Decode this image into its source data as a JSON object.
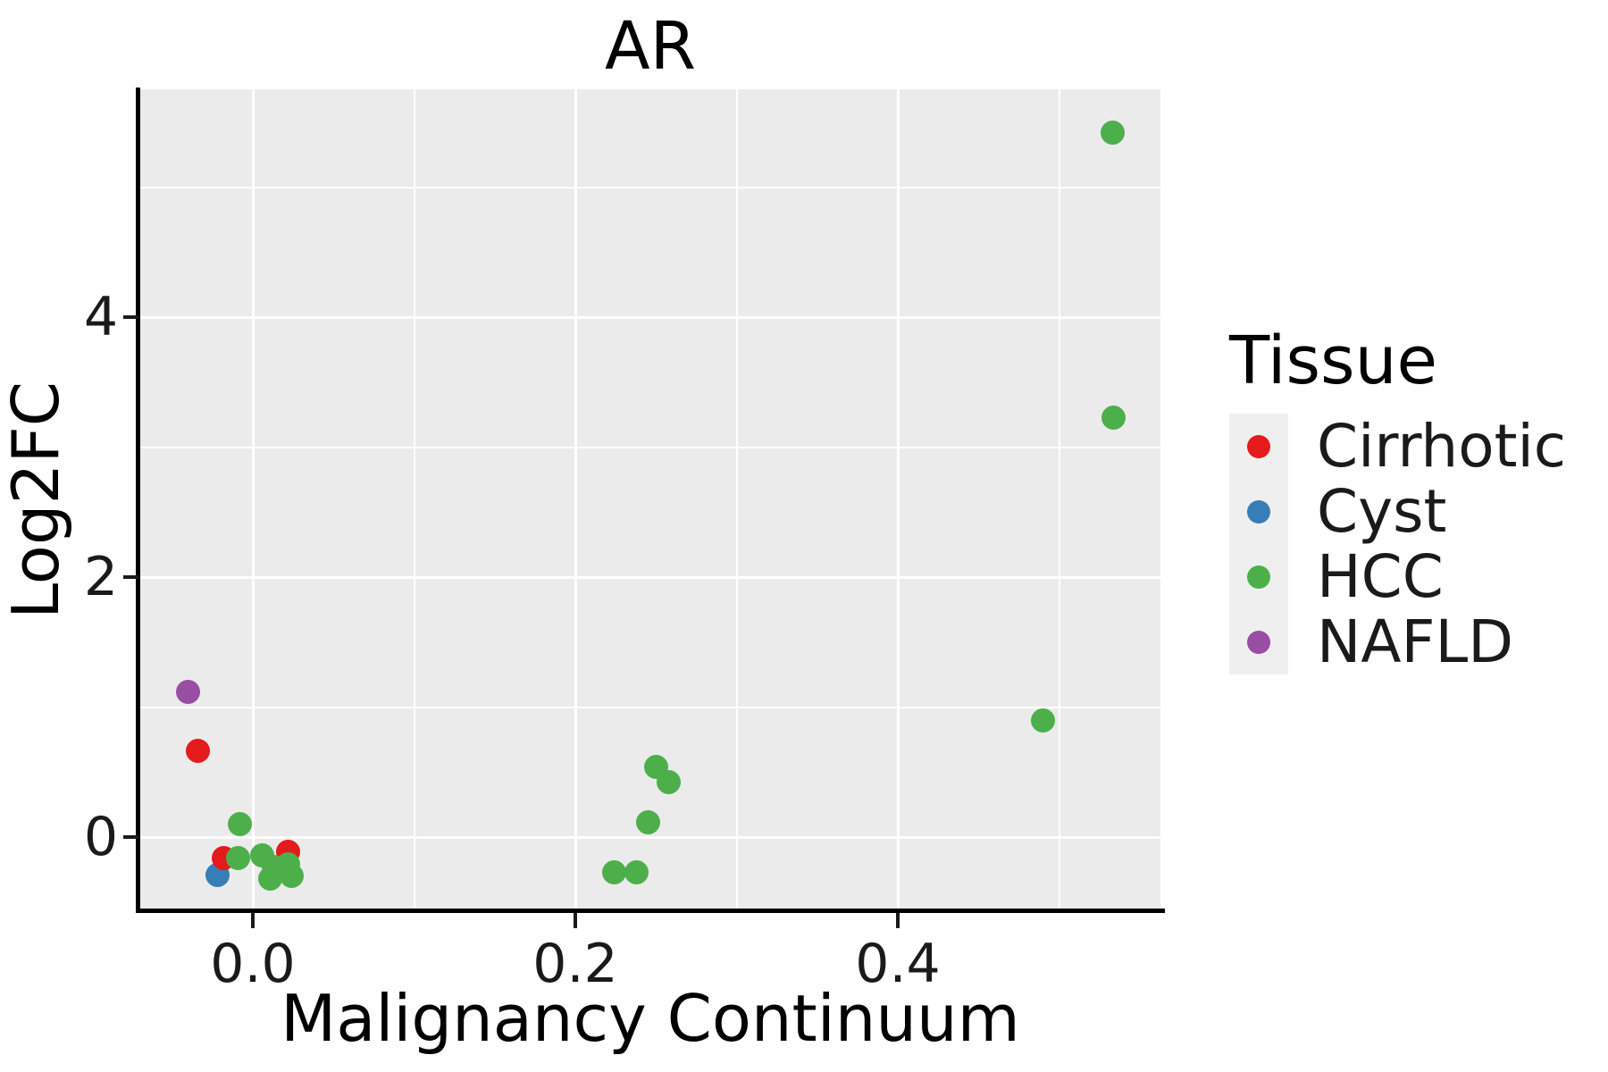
{
  "title": "AR",
  "colors": {
    "panel_background": "#EBEBEB",
    "gridline": "#FFFFFF",
    "axis_line": "#000000",
    "legend_key_background": "#EFEFEF",
    "cirrhotic": "#E41A1C",
    "cyst": "#377EB8",
    "hcc": "#4DAF4A",
    "nafld": "#984EA3"
  },
  "legend": {
    "title": "Tissue",
    "entries": [
      {
        "label": "Cirrhotic",
        "color": "#E41A1C"
      },
      {
        "label": "Cyst",
        "color": "#377EB8"
      },
      {
        "label": "HCC",
        "color": "#4DAF4A"
      },
      {
        "label": "NAFLD",
        "color": "#984EA3"
      }
    ]
  },
  "chart_data": {
    "type": "scatter",
    "title": "AR",
    "xlabel": "Malignancy Continuum",
    "ylabel": "Log2FC",
    "xlim": [
      -0.07,
      0.563
    ],
    "ylim": [
      -0.56,
      5.79
    ],
    "grid": true,
    "legend_position": "right",
    "x_ticks": {
      "values": [
        0.0,
        0.2,
        0.4
      ],
      "labels": [
        "0.0",
        "0.2",
        "0.4"
      ],
      "minor_values": [
        0.1,
        0.3,
        0.5
      ]
    },
    "y_ticks": {
      "values": [
        0,
        2,
        4
      ],
      "labels": [
        "0",
        "2",
        "4"
      ],
      "minor_values": [
        1,
        3,
        5
      ]
    },
    "series": [
      {
        "name": "Cirrhotic",
        "color": "#E41A1C",
        "points": [
          [
            -0.034,
            0.66
          ],
          [
            -0.018,
            -0.16
          ],
          [
            0.022,
            -0.11
          ]
        ]
      },
      {
        "name": "Cyst",
        "color": "#377EB8",
        "points": [
          [
            -0.022,
            -0.29
          ]
        ]
      },
      {
        "name": "HCC",
        "color": "#4DAF4A",
        "points": [
          [
            -0.008,
            0.1
          ],
          [
            -0.009,
            -0.16
          ],
          [
            0.006,
            -0.14
          ],
          [
            0.011,
            -0.32
          ],
          [
            0.013,
            -0.23
          ],
          [
            0.022,
            -0.21
          ],
          [
            0.024,
            -0.3
          ],
          [
            0.224,
            -0.27
          ],
          [
            0.238,
            -0.27
          ],
          [
            0.245,
            0.11
          ],
          [
            0.25,
            0.54
          ],
          [
            0.258,
            0.42
          ],
          [
            0.49,
            0.9
          ],
          [
            0.533,
            5.42
          ],
          [
            0.534,
            3.23
          ]
        ]
      },
      {
        "name": "NAFLD",
        "color": "#984EA3",
        "points": [
          [
            -0.04,
            1.12
          ]
        ]
      }
    ]
  }
}
